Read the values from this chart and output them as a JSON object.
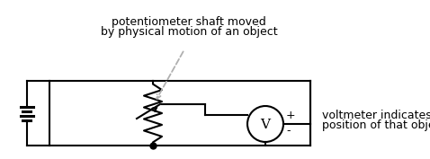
{
  "title_line1": "potentiometer shaft moved",
  "title_line2": "by physical motion of an object",
  "voltmeter_label": "V",
  "plus_label": "+",
  "minus_label": "-",
  "right_text_line1": "voltmeter indicates",
  "right_text_line2": "position of that object",
  "bg_color": "#ffffff",
  "line_color": "#000000",
  "dashed_color": "#b0b0b0",
  "font_size": 9,
  "figsize": [
    4.78,
    1.77
  ],
  "dpi": 100
}
